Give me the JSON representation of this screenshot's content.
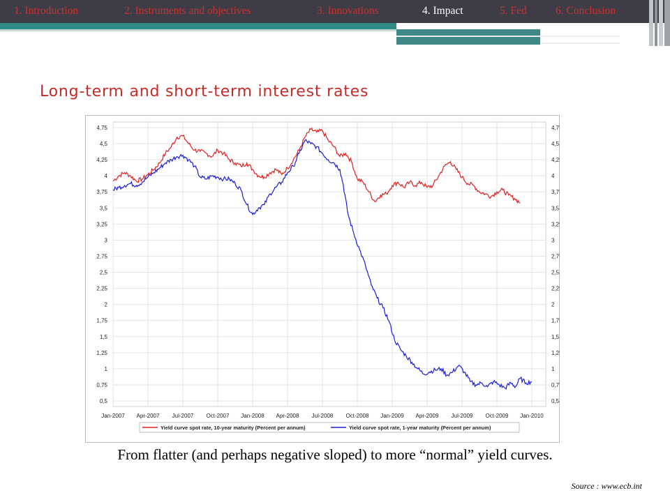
{
  "nav": {
    "items": [
      {
        "label": "1. Introduction",
        "active": false
      },
      {
        "label": "2. Instruments and objectives",
        "active": false
      },
      {
        "label": "3. Innovations",
        "active": false
      },
      {
        "label": "4. Impact",
        "active": true
      },
      {
        "label": "5. Fed",
        "active": false
      },
      {
        "label": "6. Conclusion",
        "active": false
      }
    ]
  },
  "colors": {
    "accent": "#c42b27",
    "nav_bg": "#3d3c47",
    "teal": "#2f8a88",
    "series_long": "#e02020",
    "series_short": "#1c1cd6"
  },
  "slide": {
    "title": "Long-term and short-term interest rates",
    "caption": "From flatter (and perhaps negative sloped) to more “normal” yield curves.",
    "source": "Source : www.ecb.int"
  },
  "chart_data": {
    "type": "line",
    "title": "",
    "xlabel": "",
    "ylabel": "",
    "ylim": [
      0.5,
      4.75
    ],
    "yticks": [
      "4,75",
      "4,5",
      "4,25",
      "4",
      "3,75",
      "3,5",
      "3,25",
      "3",
      "2,75",
      "2,5",
      "2,25",
      "2",
      "1,75",
      "1,5",
      "1,25",
      "1",
      "0,75",
      "0,5"
    ],
    "xticks": [
      "Jan-2007",
      "Apr-2007",
      "Jul-2007",
      "Oct-2007",
      "Jan-2008",
      "Apr-2008",
      "Jul-2008",
      "Oct-2008",
      "Jan-2009",
      "Apr-2009",
      "Jul-2009",
      "Oct-2009",
      "Jan-2010"
    ],
    "grid": true,
    "legend_position": "bottom",
    "series": [
      {
        "name": "Yield curve spot rate, 10-year maturity (Percent per annum)",
        "color": "#e02020",
        "points": [
          [
            0,
            3.92
          ],
          [
            0.5,
            4.0
          ],
          [
            1,
            4.05
          ],
          [
            1.5,
            4.0
          ],
          [
            2,
            3.92
          ],
          [
            2.5,
            3.95
          ],
          [
            3,
            4.02
          ],
          [
            3.5,
            4.1
          ],
          [
            4,
            4.2
          ],
          [
            4.5,
            4.35
          ],
          [
            5,
            4.45
          ],
          [
            5.5,
            4.6
          ],
          [
            6,
            4.62
          ],
          [
            6.5,
            4.5
          ],
          [
            7,
            4.4
          ],
          [
            7.5,
            4.38
          ],
          [
            8,
            4.35
          ],
          [
            8.5,
            4.3
          ],
          [
            9,
            4.4
          ],
          [
            9.5,
            4.35
          ],
          [
            10,
            4.25
          ],
          [
            10.5,
            4.2
          ],
          [
            11,
            4.15
          ],
          [
            11.5,
            4.2
          ],
          [
            12,
            4.1
          ],
          [
            12.5,
            4.0
          ],
          [
            13,
            3.98
          ],
          [
            13.5,
            4.05
          ],
          [
            14,
            4.1
          ],
          [
            14.5,
            4.02
          ],
          [
            15,
            4.12
          ],
          [
            15.5,
            4.25
          ],
          [
            16,
            4.4
          ],
          [
            16.5,
            4.6
          ],
          [
            17,
            4.72
          ],
          [
            17.5,
            4.68
          ],
          [
            18,
            4.7
          ],
          [
            18.5,
            4.55
          ],
          [
            19,
            4.45
          ],
          [
            19.5,
            4.3
          ],
          [
            20,
            4.35
          ],
          [
            20.5,
            4.22
          ],
          [
            21,
            3.95
          ],
          [
            21.5,
            3.9
          ],
          [
            22,
            3.75
          ],
          [
            22.5,
            3.6
          ],
          [
            23,
            3.7
          ],
          [
            23.5,
            3.72
          ],
          [
            24,
            3.85
          ],
          [
            24.5,
            3.9
          ],
          [
            25,
            3.82
          ],
          [
            25.5,
            3.9
          ],
          [
            26,
            3.85
          ],
          [
            26.5,
            3.9
          ],
          [
            27,
            3.82
          ],
          [
            27.5,
            3.85
          ],
          [
            28,
            4.0
          ],
          [
            28.5,
            4.15
          ],
          [
            29,
            4.22
          ],
          [
            29.5,
            4.1
          ],
          [
            30,
            3.98
          ],
          [
            30.5,
            3.88
          ],
          [
            31,
            3.85
          ],
          [
            31.5,
            3.75
          ],
          [
            32,
            3.72
          ],
          [
            32.5,
            3.68
          ],
          [
            33,
            3.75
          ],
          [
            33.5,
            3.78
          ],
          [
            34,
            3.7
          ],
          [
            34.5,
            3.65
          ],
          [
            35,
            3.58
          ]
        ]
      },
      {
        "name": "Yield curve spot rate, 1-year maturity (Percent per annum)",
        "color": "#1c1cd6",
        "points": [
          [
            0,
            3.78
          ],
          [
            0.5,
            3.82
          ],
          [
            1,
            3.85
          ],
          [
            1.5,
            3.88
          ],
          [
            2,
            3.85
          ],
          [
            2.5,
            3.9
          ],
          [
            3,
            3.98
          ],
          [
            3.5,
            4.05
          ],
          [
            4,
            4.12
          ],
          [
            4.5,
            4.2
          ],
          [
            5,
            4.25
          ],
          [
            5.5,
            4.3
          ],
          [
            6,
            4.32
          ],
          [
            6.5,
            4.25
          ],
          [
            7,
            4.15
          ],
          [
            7.5,
            3.98
          ],
          [
            8,
            3.95
          ],
          [
            8.5,
            4.0
          ],
          [
            9,
            3.98
          ],
          [
            9.5,
            3.95
          ],
          [
            10,
            3.95
          ],
          [
            10.5,
            3.88
          ],
          [
            11,
            3.78
          ],
          [
            11.5,
            3.55
          ],
          [
            12,
            3.4
          ],
          [
            12.5,
            3.5
          ],
          [
            13,
            3.55
          ],
          [
            13.5,
            3.72
          ],
          [
            14,
            3.82
          ],
          [
            14.5,
            3.9
          ],
          [
            15,
            4.05
          ],
          [
            15.5,
            4.15
          ],
          [
            16,
            4.35
          ],
          [
            16.5,
            4.55
          ],
          [
            17,
            4.5
          ],
          [
            17.5,
            4.45
          ],
          [
            18,
            4.35
          ],
          [
            18.5,
            4.25
          ],
          [
            19,
            4.2
          ],
          [
            19.5,
            4.1
          ],
          [
            19.8,
            3.85
          ],
          [
            20.2,
            3.4
          ],
          [
            20.7,
            3.1
          ],
          [
            21.2,
            2.85
          ],
          [
            21.7,
            2.6
          ],
          [
            22.2,
            2.3
          ],
          [
            22.7,
            2.1
          ],
          [
            23.2,
            1.95
          ],
          [
            23.7,
            1.75
          ],
          [
            24.2,
            1.45
          ],
          [
            24.7,
            1.3
          ],
          [
            25.2,
            1.2
          ],
          [
            25.7,
            1.1
          ],
          [
            26.2,
            1.0
          ],
          [
            26.7,
            0.92
          ],
          [
            27.2,
            0.95
          ],
          [
            27.7,
            0.98
          ],
          [
            28.2,
            1.0
          ],
          [
            28.7,
            0.9
          ],
          [
            29.2,
            0.95
          ],
          [
            29.7,
            1.05
          ],
          [
            30.2,
            0.95
          ],
          [
            30.7,
            0.8
          ],
          [
            31.2,
            0.75
          ],
          [
            31.7,
            0.78
          ],
          [
            32.2,
            0.72
          ],
          [
            32.7,
            0.8
          ],
          [
            33.2,
            0.75
          ],
          [
            33.7,
            0.7
          ],
          [
            34.2,
            0.78
          ],
          [
            34.6,
            0.72
          ],
          [
            35,
            0.85
          ],
          [
            35.5,
            0.78
          ],
          [
            36,
            0.8
          ]
        ]
      }
    ],
    "x_units": "months since Jan-2007"
  }
}
